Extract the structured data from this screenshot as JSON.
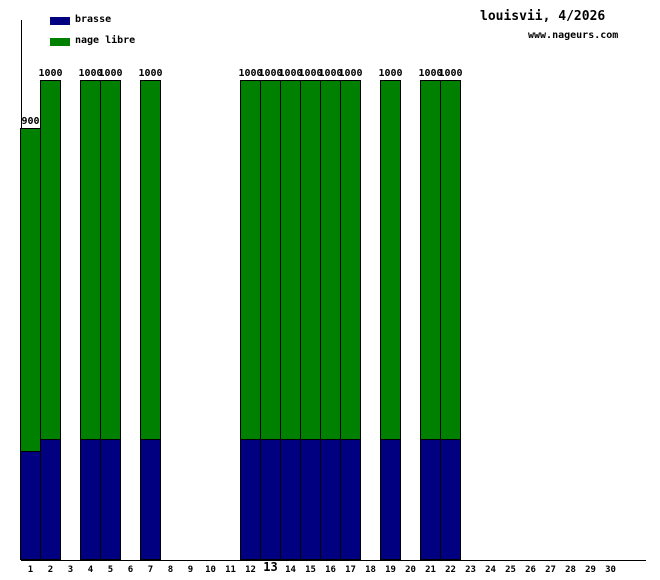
{
  "header": {
    "title": "louisvii, 4/2026",
    "website": "www.nageurs.com"
  },
  "legend": {
    "items": [
      {
        "label": "brasse",
        "color": "#000080"
      },
      {
        "label": "nage libre",
        "color": "#008000"
      }
    ]
  },
  "chart_data": {
    "type": "bar",
    "stacked": true,
    "title": "louisvii, 4/2026",
    "xlabel": "",
    "ylabel": "",
    "ylim": [
      0,
      1125
    ],
    "grid": false,
    "legend_position": "top-left",
    "categories": [
      1,
      2,
      3,
      4,
      5,
      6,
      7,
      8,
      9,
      10,
      11,
      12,
      13,
      14,
      15,
      16,
      17,
      18,
      19,
      20,
      21,
      22,
      23,
      24,
      25,
      26,
      27,
      28,
      29,
      30
    ],
    "highlighted_category": "13",
    "series": [
      {
        "name": "brasse",
        "color": "#000080",
        "values": [
          225,
          250,
          0,
          250,
          250,
          0,
          250,
          0,
          0,
          0,
          0,
          250,
          250,
          250,
          250,
          250,
          250,
          0,
          250,
          0,
          250,
          250,
          0,
          0,
          0,
          0,
          0,
          0,
          0,
          0
        ]
      },
      {
        "name": "nage libre",
        "color": "#008000",
        "values": [
          675,
          750,
          0,
          750,
          750,
          0,
          750,
          0,
          0,
          0,
          0,
          750,
          750,
          750,
          750,
          750,
          750,
          0,
          750,
          0,
          750,
          750,
          0,
          0,
          0,
          0,
          0,
          0,
          0,
          0
        ]
      }
    ],
    "bar_total_labels": [
      "900",
      "1000",
      "",
      "1000",
      "1000",
      "",
      "1000",
      "",
      "",
      "",
      "",
      "1000",
      "1000",
      "1000",
      "1000",
      "1000",
      "1000",
      "",
      "1000",
      "",
      "1000",
      "1000",
      "",
      "",
      "",
      "",
      "",
      "",
      "",
      ""
    ]
  }
}
